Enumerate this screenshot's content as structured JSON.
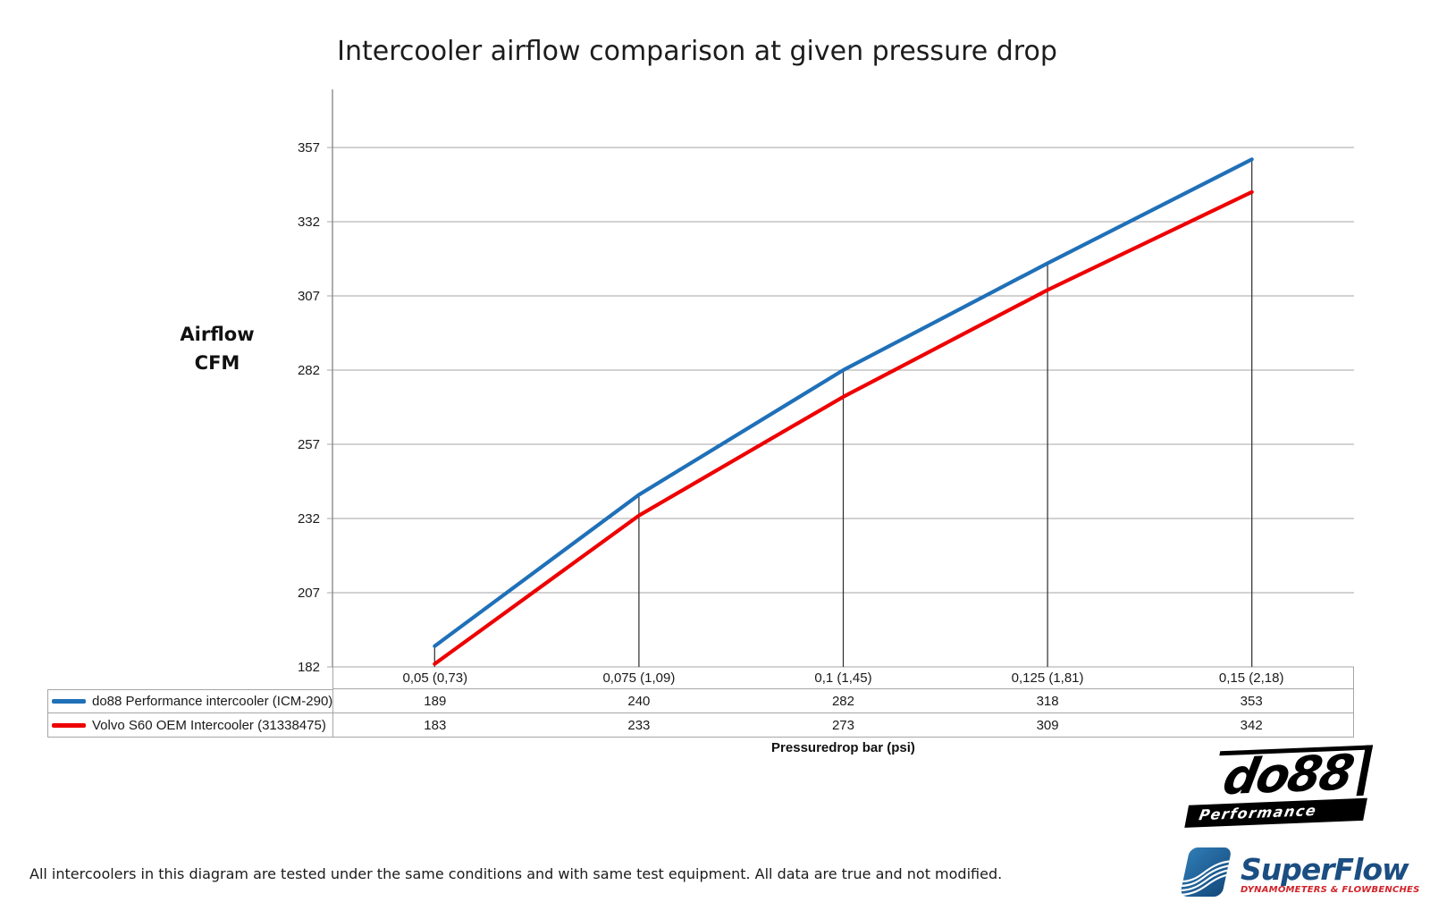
{
  "title": "Intercooler airflow comparison at given pressure drop",
  "y_axis": {
    "line1": "Airflow",
    "line2": "CFM"
  },
  "x_axis_title": "Pressuredrop bar (psi)",
  "footnote": "All intercoolers in this diagram are tested under the same conditions and with same test equipment. All data are true and not modified.",
  "chart_data": {
    "type": "line",
    "title": "Intercooler airflow comparison at given pressure drop",
    "xlabel": "Pressuredrop bar (psi)",
    "ylabel": "Airflow CFM",
    "categories": [
      "0,05 (0,73)",
      "0,075 (1,09)",
      "0,1 (1,45)",
      "0,125 (1,81)",
      "0,15 (2,18)"
    ],
    "series": [
      {
        "name": "do88 Performance intercooler (ICM-290)",
        "color": "#1F70B8",
        "values": [
          189,
          240,
          282,
          318,
          353
        ]
      },
      {
        "name": "Volvo S60 OEM Intercooler (31338475)",
        "color": "#EE0000",
        "values": [
          183,
          233,
          273,
          309,
          342
        ]
      }
    ],
    "yticks": [
      182,
      207,
      232,
      257,
      282,
      307,
      332,
      357
    ],
    "ylim": [
      182,
      377
    ],
    "grid": true,
    "legend_position": "data-table-left",
    "colors": {
      "gridline": "#A6A6A6",
      "axis": "#8C8C8C",
      "dropline": "#2B2B2B"
    }
  },
  "logos": {
    "do88": {
      "name": "do88",
      "tagline": "Performance"
    },
    "superflow": {
      "name": "SuperFlow",
      "tagline": "DYNAMOMETERS & FLOWBENCHES"
    }
  }
}
